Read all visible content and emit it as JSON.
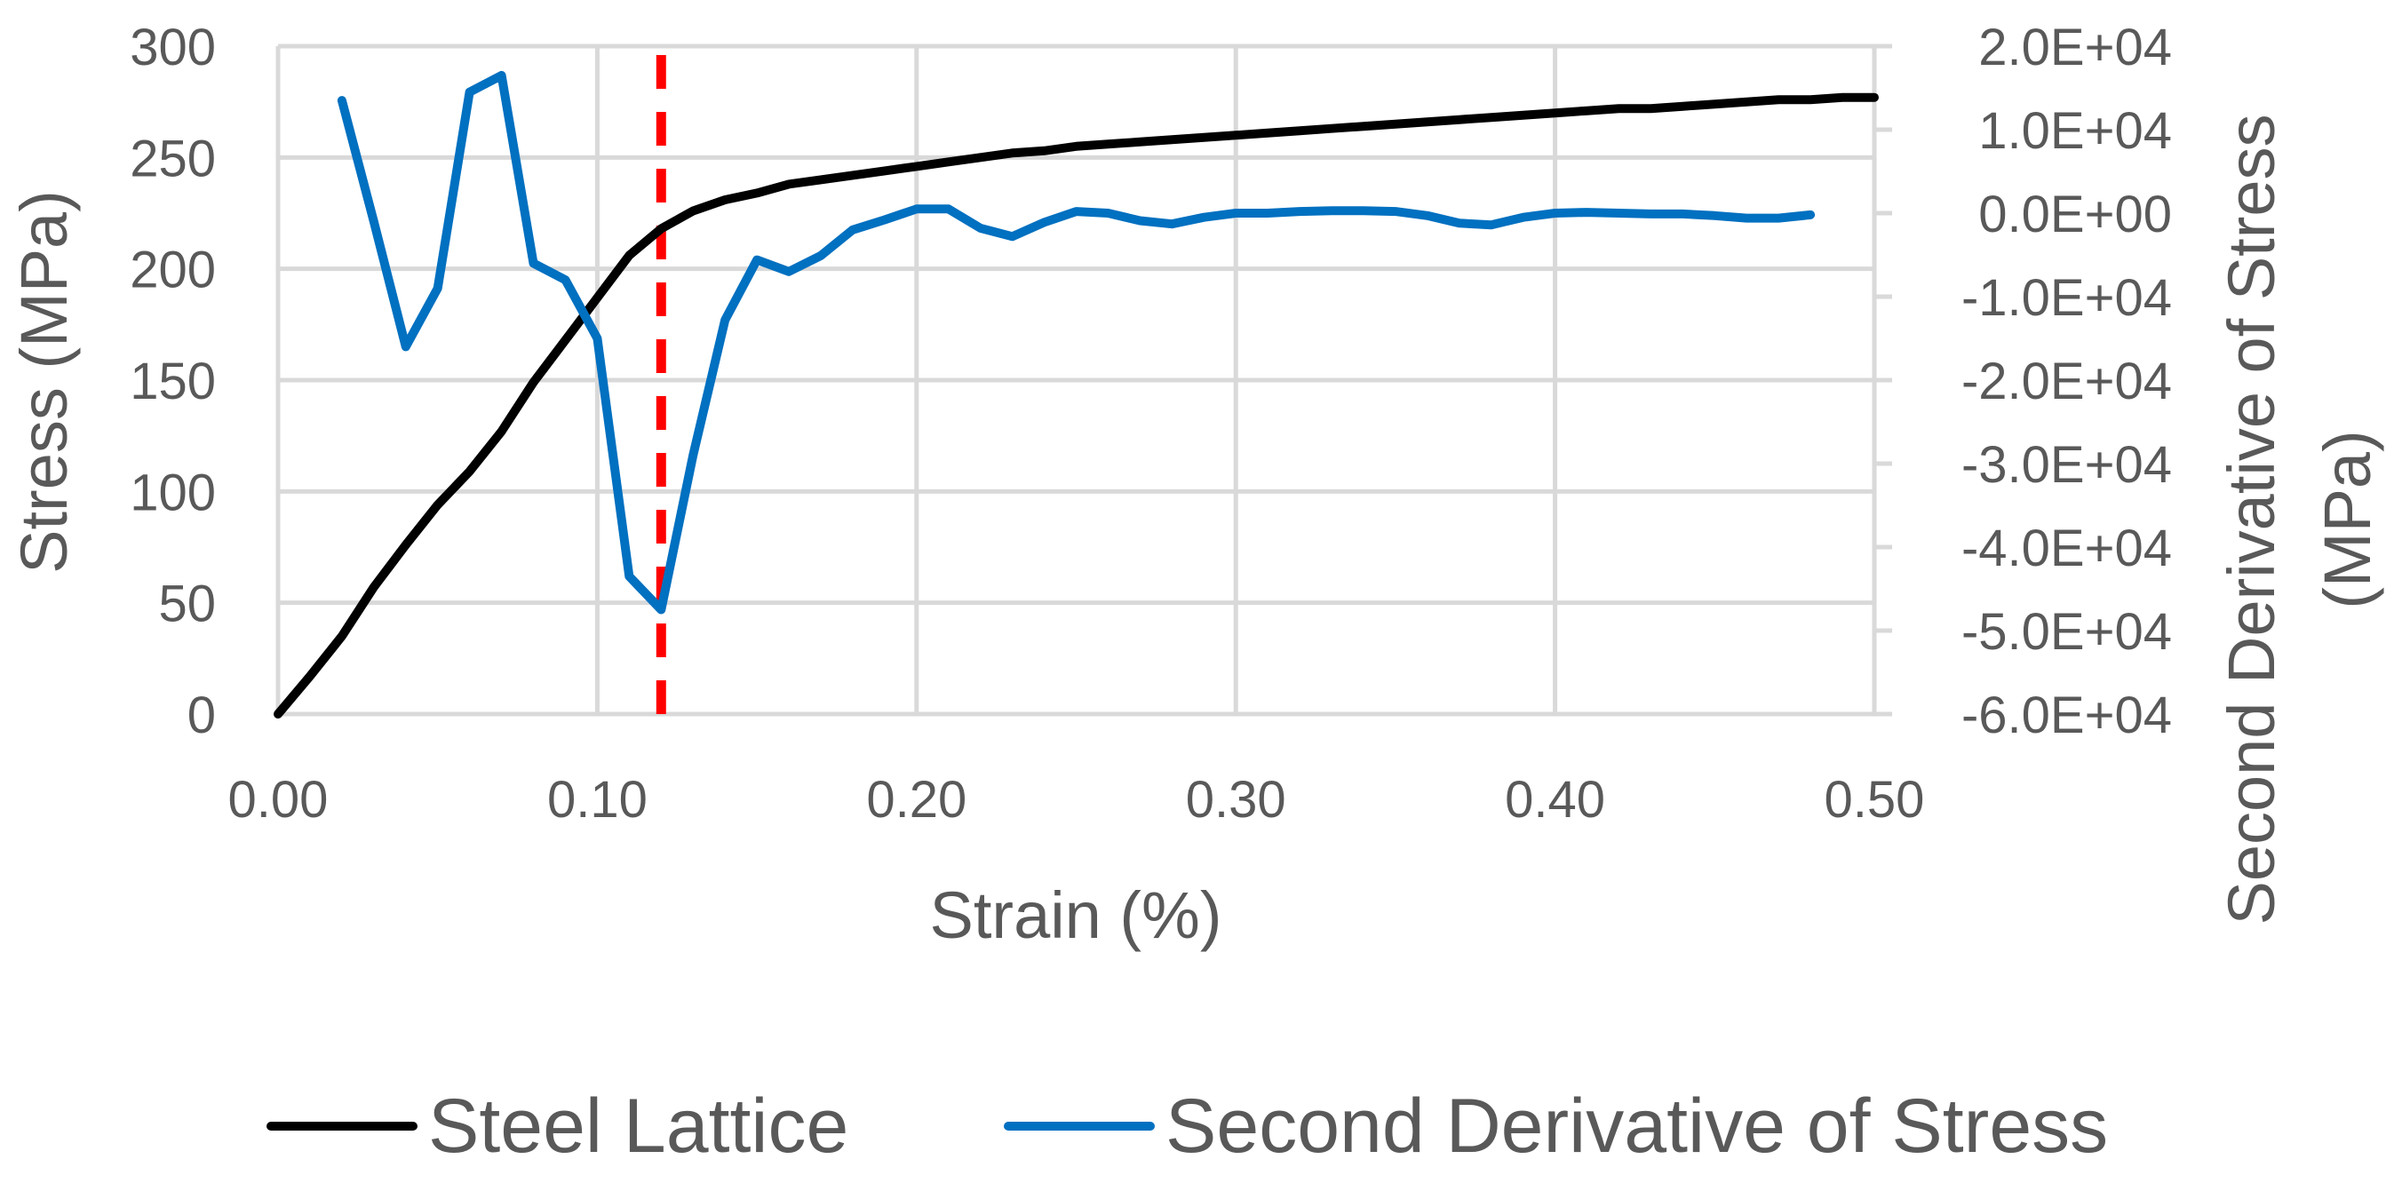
{
  "chart_data": {
    "type": "line",
    "xlabel": "Strain (%)",
    "ylabel": "Stress (MPa)",
    "y2label_line1": "Second Derivative of Stress",
    "y2label_line2": "(MPa)",
    "xlim": [
      0,
      0.5
    ],
    "ylim": [
      0,
      300
    ],
    "y2lim": [
      -60000,
      20000
    ],
    "x_ticks": [
      "0.00",
      "0.10",
      "0.20",
      "0.30",
      "0.40",
      "0.50"
    ],
    "y_ticks": [
      "0",
      "50",
      "100",
      "150",
      "200",
      "250",
      "300"
    ],
    "y2_ticks": [
      "-6.0E+04",
      "-5.0E+04",
      "-4.0E+04",
      "-3.0E+04",
      "-2.0E+04",
      "-1.0E+04",
      "0.0E+00",
      "1.0E+04",
      "2.0E+04"
    ],
    "grid": true,
    "legend_position": "bottom",
    "marker_line": {
      "x": 0.12,
      "color": "#ff0000",
      "style": "dashed"
    },
    "series": [
      {
        "name": "Steel Lattice",
        "axis": "left",
        "color": "#000000",
        "x": [
          0.0,
          0.01,
          0.02,
          0.03,
          0.04,
          0.05,
          0.06,
          0.07,
          0.08,
          0.09,
          0.1,
          0.11,
          0.12,
          0.13,
          0.14,
          0.15,
          0.16,
          0.17,
          0.18,
          0.19,
          0.2,
          0.21,
          0.22,
          0.23,
          0.24,
          0.25,
          0.26,
          0.27,
          0.28,
          0.29,
          0.3,
          0.31,
          0.32,
          0.33,
          0.34,
          0.35,
          0.36,
          0.37,
          0.38,
          0.39,
          0.4,
          0.41,
          0.42,
          0.43,
          0.44,
          0.45,
          0.46,
          0.47,
          0.48,
          0.49,
          0.5
        ],
        "values": [
          0,
          17,
          35,
          57,
          76,
          94,
          109,
          127,
          149,
          168,
          187,
          206,
          218,
          226,
          231,
          234,
          238,
          240,
          242,
          244,
          246,
          248,
          250,
          252,
          253,
          255,
          256,
          257,
          258,
          259,
          260,
          261,
          262,
          263,
          264,
          265,
          266,
          267,
          268,
          269,
          270,
          271,
          272,
          272,
          273,
          274,
          275,
          276,
          276,
          277,
          277
        ]
      },
      {
        "name": "Second Derivative of Stress",
        "axis": "right",
        "color": "#0070c0",
        "x": [
          0.02,
          0.03,
          0.04,
          0.05,
          0.06,
          0.07,
          0.08,
          0.09,
          0.1,
          0.11,
          0.12,
          0.13,
          0.14,
          0.15,
          0.16,
          0.17,
          0.18,
          0.19,
          0.2,
          0.21,
          0.22,
          0.23,
          0.24,
          0.25,
          0.26,
          0.27,
          0.28,
          0.29,
          0.3,
          0.31,
          0.32,
          0.33,
          0.34,
          0.35,
          0.36,
          0.37,
          0.38,
          0.39,
          0.4,
          0.41,
          0.42,
          0.43,
          0.44,
          0.45,
          0.46,
          0.47,
          0.48
        ],
        "values": [
          13500,
          -1000,
          -16000,
          -9000,
          14500,
          16500,
          -6000,
          -8000,
          -15000,
          -43500,
          -47500,
          -29000,
          -12800,
          -5600,
          -7000,
          -5100,
          -2000,
          -800,
          500,
          500,
          -1800,
          -2800,
          -1100,
          200,
          0,
          -900,
          -1300,
          -500,
          0,
          0,
          200,
          300,
          300,
          200,
          -300,
          -1200,
          -1400,
          -500,
          0,
          100,
          0,
          -100,
          -100,
          -300,
          -600,
          -600,
          -200
        ]
      }
    ]
  }
}
